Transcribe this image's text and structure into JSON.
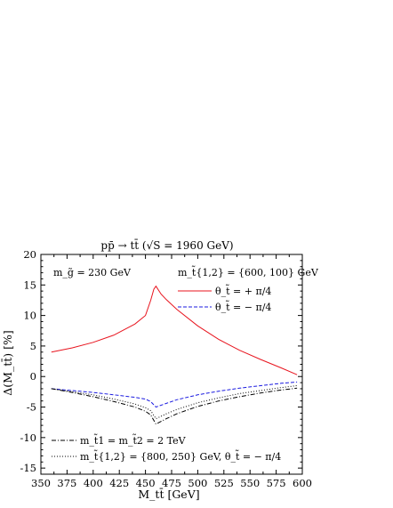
{
  "chart_data": {
    "type": "line",
    "title": "pp̄ → tt̄  (√S = 1960 GeV)",
    "xlabel": "M_tt̄ [GeV]",
    "ylabel": "Δ(M_tt̄) [%]",
    "xlim": [
      350,
      600
    ],
    "ylim": [
      -16,
      20
    ],
    "xticks": [
      350,
      375,
      400,
      425,
      450,
      475,
      500,
      525,
      550,
      575,
      600
    ],
    "yticks": [
      -15,
      -10,
      -5,
      0,
      5,
      10,
      15,
      20
    ],
    "xtick_labels": [
      "350",
      "375",
      "400",
      "425",
      "450",
      "475",
      "500",
      "525",
      "550",
      "575",
      "600"
    ],
    "ytick_labels": [
      "-15",
      "-10",
      "-5",
      "0",
      "5",
      "10",
      "15",
      "20"
    ],
    "grid": false,
    "annotations": {
      "gluino_mass": "m_g̃ = 230 GeV",
      "stop_masses_1": "m_t̃{1,2} = {600, 100} GeV",
      "stop_masses_2": "m_t̃1 = m_t̃2 = 2 TeV",
      "stop_masses_3": "m_t̃{1,2} = {800, 250} GeV,  θ_t̃ = − π/4"
    },
    "series": [
      {
        "name": "θ_t̃ = + π/4",
        "color": "#e8141e",
        "dash": "solid",
        "x": [
          360,
          380,
          400,
          420,
          440,
          450,
          455,
          458,
          460,
          465,
          470,
          480,
          500,
          520,
          540,
          560,
          580,
          595
        ],
        "y": [
          4.0,
          4.7,
          5.6,
          6.8,
          8.6,
          10.0,
          12.5,
          14.3,
          14.8,
          13.5,
          12.6,
          11.0,
          8.3,
          6.1,
          4.3,
          2.8,
          1.4,
          0.3
        ]
      },
      {
        "name": "θ_t̃ = − π/4",
        "color": "#1b1be0",
        "dash": "dashed",
        "x": [
          360,
          380,
          400,
          420,
          440,
          450,
          455,
          460,
          470,
          480,
          500,
          520,
          540,
          560,
          580,
          595
        ],
        "y": [
          -2.0,
          -2.3,
          -2.6,
          -3.0,
          -3.4,
          -3.7,
          -4.1,
          -5.0,
          -4.4,
          -3.8,
          -3.0,
          -2.4,
          -1.9,
          -1.5,
          -1.1,
          -0.9
        ]
      },
      {
        "name": "m_t̃1 = m_t̃2 = 2 TeV",
        "color": "#000000",
        "dash": "dashdot",
        "x": [
          360,
          380,
          400,
          420,
          440,
          450,
          455,
          460,
          470,
          480,
          500,
          520,
          540,
          560,
          580,
          595
        ],
        "y": [
          -2.0,
          -2.6,
          -3.3,
          -4.1,
          -5.0,
          -5.7,
          -6.3,
          -7.8,
          -6.9,
          -6.1,
          -4.9,
          -4.0,
          -3.3,
          -2.7,
          -2.2,
          -1.9
        ]
      },
      {
        "name": "m_t̃{1,2} = {800, 250} GeV,  θ_t̃ = − π/4",
        "color": "#000000",
        "dash": "dotted",
        "x": [
          360,
          380,
          400,
          420,
          440,
          450,
          455,
          460,
          470,
          480,
          500,
          520,
          540,
          560,
          580,
          595
        ],
        "y": [
          -2.0,
          -2.5,
          -3.0,
          -3.7,
          -4.5,
          -5.1,
          -5.6,
          -6.9,
          -6.1,
          -5.4,
          -4.3,
          -3.5,
          -2.8,
          -2.3,
          -1.8,
          -1.5
        ]
      }
    ]
  }
}
